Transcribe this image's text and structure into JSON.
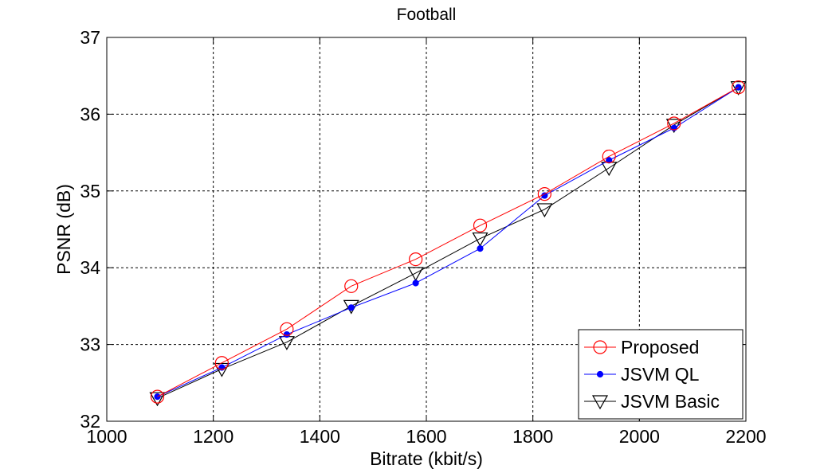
{
  "chart_data": {
    "type": "line",
    "title": "Football",
    "xlabel": "Bitrate (kbit/s)",
    "ylabel": "PSNR (dB)",
    "xlim": [
      1000,
      2200
    ],
    "ylim": [
      32,
      37
    ],
    "xticks": [
      1000,
      1200,
      1400,
      1600,
      1800,
      2000,
      2200
    ],
    "yticks": [
      32,
      33,
      34,
      35,
      36,
      37
    ],
    "grid": true,
    "legend_position": "bottom-right",
    "series": [
      {
        "name": "Proposed",
        "color": "#ff0000",
        "marker": "circle",
        "x": [
          1095,
          1216,
          1338,
          1459,
          1580,
          1701,
          1822,
          1943,
          2065,
          2186
        ],
        "y": [
          32.32,
          32.76,
          33.2,
          33.76,
          34.11,
          34.55,
          34.96,
          35.45,
          35.88,
          36.35
        ]
      },
      {
        "name": "JSVM QL",
        "color": "#0000ff",
        "marker": "dot",
        "x": [
          1095,
          1216,
          1338,
          1459,
          1580,
          1701,
          1822,
          1943,
          2065,
          2186
        ],
        "y": [
          32.32,
          32.7,
          33.13,
          33.48,
          33.8,
          34.25,
          34.94,
          35.4,
          35.82,
          36.35
        ]
      },
      {
        "name": "JSVM Basic",
        "color": "#000000",
        "marker": "triangle-down",
        "x": [
          1095,
          1216,
          1338,
          1459,
          1580,
          1701,
          1822,
          1943,
          2065,
          2186
        ],
        "y": [
          32.3,
          32.68,
          33.03,
          33.5,
          33.93,
          34.38,
          34.76,
          35.3,
          35.86,
          36.35
        ]
      }
    ]
  }
}
